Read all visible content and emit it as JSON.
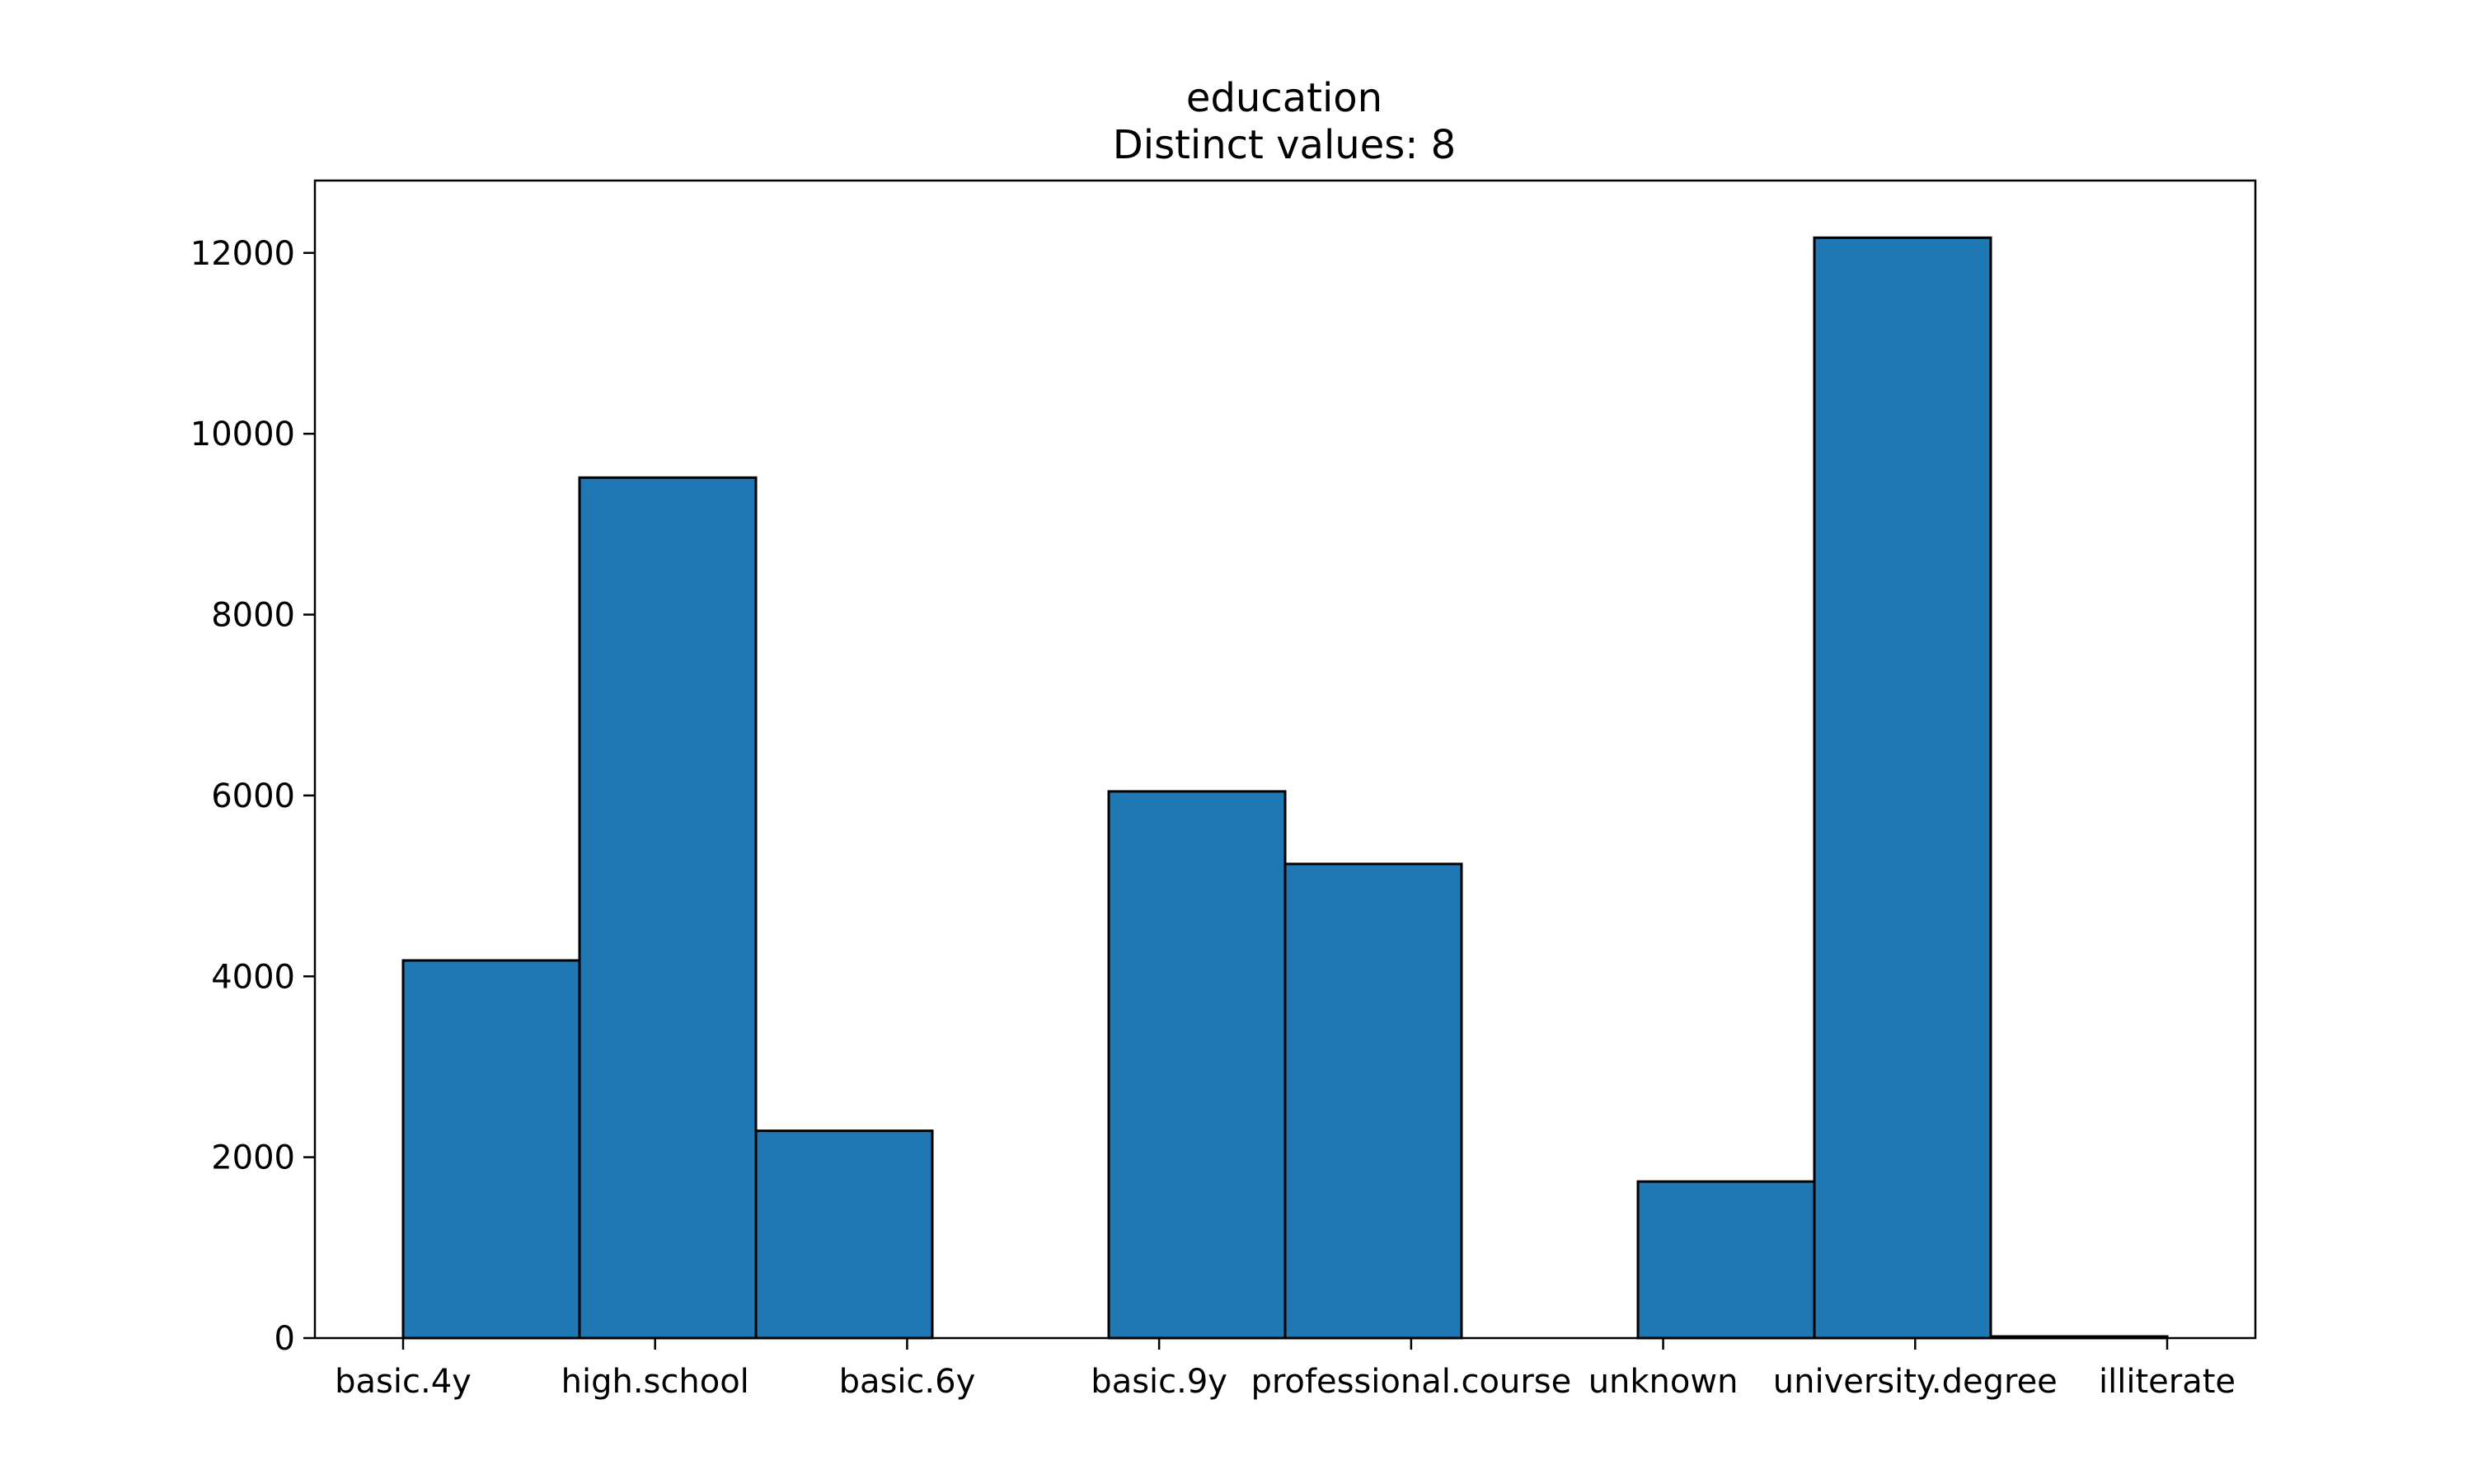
{
  "chart_data": {
    "type": "bar",
    "title": "education",
    "subtitle": "Distinct values: 8",
    "xlabel": "",
    "ylabel": "",
    "ylim": [
      0,
      12800
    ],
    "yticks": [
      0,
      2000,
      4000,
      6000,
      8000,
      10000,
      12000
    ],
    "categories": [
      "basic.4y",
      "high.school",
      "basic.6y",
      "basic.9y",
      "professional.course",
      "unknown",
      "university.degree",
      "illiterate"
    ],
    "bins": [
      {
        "start": 0.0,
        "end": 0.7,
        "value": 4176
      },
      {
        "start": 0.7,
        "end": 1.4,
        "value": 9515
      },
      {
        "start": 1.4,
        "end": 2.1,
        "value": 2292
      },
      {
        "start": 2.1,
        "end": 2.8,
        "value": 0
      },
      {
        "start": 2.8,
        "end": 3.5,
        "value": 6045
      },
      {
        "start": 3.5,
        "end": 4.2,
        "value": 5243
      },
      {
        "start": 4.2,
        "end": 4.9,
        "value": 0
      },
      {
        "start": 4.9,
        "end": 5.6,
        "value": 1731
      },
      {
        "start": 5.6,
        "end": 6.3,
        "value": 12168
      },
      {
        "start": 6.3,
        "end": 7.0,
        "value": 18
      }
    ],
    "xticks": [
      0,
      1,
      2,
      3,
      4,
      5,
      6,
      7
    ],
    "grid": false,
    "legend": "none",
    "colors": {
      "bar_fill": "#1f77b4",
      "bar_edge": "#000000",
      "axes": "#000000"
    }
  }
}
